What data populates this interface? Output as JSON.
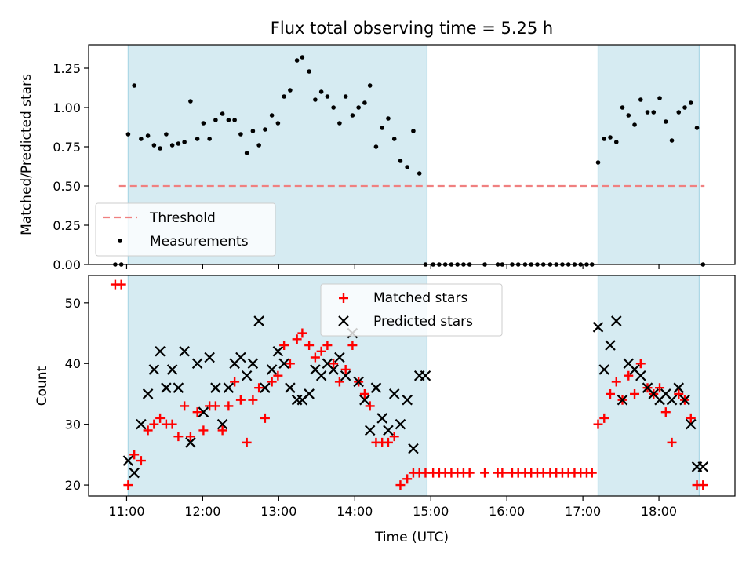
{
  "title": "Flux total observing time = 5.25 h",
  "chart_data": [
    {
      "type": "scatter",
      "ylabel": "Matched/Predicted stars",
      "xlabel": "",
      "xlim": [
        10.5,
        19.0
      ],
      "ylim": [
        0.0,
        1.4
      ],
      "yticks": [
        "0.00",
        "0.25",
        "0.50",
        "0.75",
        "1.00",
        "1.25"
      ],
      "xticks": [
        11,
        12,
        13,
        14,
        15,
        16,
        17,
        18
      ],
      "grid": false,
      "legend_position": "lower-left",
      "shaded_intervals": [
        [
          11.02,
          14.95
        ],
        [
          17.2,
          18.53
        ]
      ],
      "threshold": {
        "name": "Threshold",
        "value": 0.5,
        "x": [
          10.9,
          18.6
        ],
        "color": "#f08080"
      },
      "series": [
        {
          "name": "Measurements",
          "color": "#000000",
          "x": [
            10.85,
            10.93,
            11.02,
            11.1,
            11.19,
            11.28,
            11.36,
            11.44,
            11.52,
            11.6,
            11.68,
            11.76,
            11.84,
            11.93,
            12.01,
            12.09,
            12.17,
            12.26,
            12.34,
            12.42,
            12.5,
            12.58,
            12.66,
            12.74,
            12.82,
            12.91,
            12.99,
            13.07,
            13.15,
            13.24,
            13.31,
            13.4,
            13.48,
            13.56,
            13.64,
            13.72,
            13.8,
            13.88,
            13.97,
            14.05,
            14.13,
            14.2,
            14.28,
            14.36,
            14.44,
            14.52,
            14.6,
            14.69,
            14.77,
            14.85,
            14.93,
            15.03,
            15.11,
            15.19,
            15.27,
            15.35,
            15.43,
            15.51,
            15.71,
            15.88,
            15.94,
            16.07,
            16.15,
            16.24,
            16.32,
            16.4,
            16.48,
            16.57,
            16.65,
            16.73,
            16.81,
            16.89,
            16.97,
            17.05,
            17.12,
            17.2,
            17.28,
            17.36,
            17.44,
            17.52,
            17.6,
            17.68,
            17.76,
            17.85,
            17.93,
            18.01,
            18.09,
            18.17,
            18.26,
            18.34,
            18.42,
            18.5,
            18.58
          ],
          "y": [
            0.0,
            0.0,
            0.83,
            1.14,
            0.8,
            0.82,
            0.76,
            0.74,
            0.83,
            0.76,
            0.77,
            0.78,
            1.04,
            0.8,
            0.9,
            0.8,
            0.92,
            0.96,
            0.92,
            0.92,
            0.83,
            0.71,
            0.85,
            0.76,
            0.86,
            0.95,
            0.9,
            1.07,
            1.11,
            1.3,
            1.32,
            1.23,
            1.05,
            1.1,
            1.07,
            1.0,
            0.9,
            1.07,
            0.95,
            1.0,
            1.03,
            1.14,
            0.75,
            0.87,
            0.93,
            0.8,
            0.66,
            0.62,
            0.85,
            0.58,
            0.0,
            0.0,
            0.0,
            0.0,
            0.0,
            0.0,
            0.0,
            0.0,
            0.0,
            0.0,
            0.0,
            0.0,
            0.0,
            0.0,
            0.0,
            0.0,
            0.0,
            0.0,
            0.0,
            0.0,
            0.0,
            0.0,
            0.0,
            0.0,
            0.0,
            0.65,
            0.8,
            0.81,
            0.78,
            1.0,
            0.95,
            0.89,
            1.05,
            0.97,
            0.97,
            1.06,
            0.91,
            0.79,
            0.97,
            1.0,
            1.03,
            0.87,
            0.0
          ]
        }
      ]
    },
    {
      "type": "scatter",
      "ylabel": "Count",
      "xlabel": "Time (UTC)",
      "xlim": [
        10.5,
        19.0
      ],
      "ylim": [
        18.2,
        54.5
      ],
      "yticks": [
        20,
        30,
        40,
        50
      ],
      "xticks": [
        "11:00",
        "12:00",
        "13:00",
        "14:00",
        "15:00",
        "16:00",
        "17:00",
        "18:00"
      ],
      "grid": false,
      "legend_position": "top-center",
      "shaded_intervals": [
        [
          11.02,
          14.95
        ],
        [
          17.2,
          18.53
        ]
      ],
      "series": [
        {
          "name": "Matched stars",
          "marker": "+",
          "color": "#ff0000",
          "x": [
            10.85,
            10.93,
            11.02,
            11.1,
            11.19,
            11.28,
            11.36,
            11.44,
            11.52,
            11.6,
            11.68,
            11.76,
            11.84,
            11.93,
            12.01,
            12.09,
            12.17,
            12.26,
            12.34,
            12.42,
            12.5,
            12.58,
            12.66,
            12.74,
            12.82,
            12.91,
            12.99,
            13.07,
            13.15,
            13.24,
            13.31,
            13.4,
            13.48,
            13.56,
            13.64,
            13.72,
            13.8,
            13.88,
            13.97,
            14.05,
            14.13,
            14.2,
            14.28,
            14.36,
            14.44,
            14.52,
            14.6,
            14.69,
            14.77,
            14.85,
            14.93,
            15.03,
            15.11,
            15.19,
            15.27,
            15.35,
            15.43,
            15.51,
            15.71,
            15.88,
            15.94,
            16.07,
            16.15,
            16.24,
            16.32,
            16.4,
            16.48,
            16.57,
            16.65,
            16.73,
            16.81,
            16.89,
            16.97,
            17.05,
            17.12,
            17.2,
            17.28,
            17.36,
            17.44,
            17.52,
            17.6,
            17.68,
            17.76,
            17.85,
            17.93,
            18.01,
            18.09,
            18.17,
            18.26,
            18.34,
            18.42,
            18.5,
            18.58
          ],
          "y": [
            53,
            53,
            20,
            25,
            24,
            29,
            30,
            31,
            30,
            30,
            28,
            33,
            28,
            32,
            29,
            33,
            33,
            29,
            33,
            37,
            34,
            27,
            34,
            36,
            31,
            37,
            38,
            43,
            40,
            44,
            45,
            43,
            41,
            42,
            43,
            40,
            37,
            39,
            43,
            37,
            35,
            33,
            27,
            27,
            27,
            28,
            20,
            21,
            22,
            22,
            22,
            22,
            22,
            22,
            22,
            22,
            22,
            22,
            22,
            22,
            22,
            22,
            22,
            22,
            22,
            22,
            22,
            22,
            22,
            22,
            22,
            22,
            22,
            22,
            22,
            30,
            31,
            35,
            37,
            34,
            38,
            35,
            40,
            36,
            35,
            36,
            32,
            27,
            35,
            34,
            31,
            20,
            20
          ]
        },
        {
          "name": "Predicted stars",
          "marker": "x",
          "color": "#000000",
          "x": [
            11.02,
            11.1,
            11.19,
            11.28,
            11.36,
            11.44,
            11.52,
            11.6,
            11.68,
            11.76,
            11.84,
            11.93,
            12.01,
            12.09,
            12.17,
            12.26,
            12.34,
            12.42,
            12.5,
            12.58,
            12.66,
            12.74,
            12.82,
            12.91,
            12.99,
            13.07,
            13.15,
            13.24,
            13.31,
            13.4,
            13.48,
            13.56,
            13.64,
            13.72,
            13.8,
            13.88,
            13.97,
            14.05,
            14.13,
            14.2,
            14.28,
            14.36,
            14.44,
            14.52,
            14.6,
            14.69,
            14.77,
            14.85,
            14.93,
            17.2,
            17.28,
            17.36,
            17.44,
            17.52,
            17.6,
            17.68,
            17.76,
            17.85,
            17.93,
            18.01,
            18.09,
            18.17,
            18.26,
            18.34,
            18.42,
            18.5,
            18.58
          ],
          "y": [
            24,
            22,
            30,
            35,
            39,
            42,
            36,
            39,
            36,
            42,
            27,
            40,
            32,
            41,
            36,
            30,
            36,
            40,
            41,
            38,
            40,
            47,
            36,
            39,
            42,
            40,
            36,
            34,
            34,
            35,
            39,
            38,
            40,
            39,
            41,
            38,
            45,
            37,
            34,
            29,
            36,
            31,
            29,
            35,
            30,
            34,
            26,
            38,
            38,
            46,
            39,
            43,
            47,
            34,
            40,
            39,
            38,
            36,
            35,
            34,
            35,
            34,
            36,
            34,
            30,
            23,
            23
          ]
        }
      ]
    }
  ]
}
